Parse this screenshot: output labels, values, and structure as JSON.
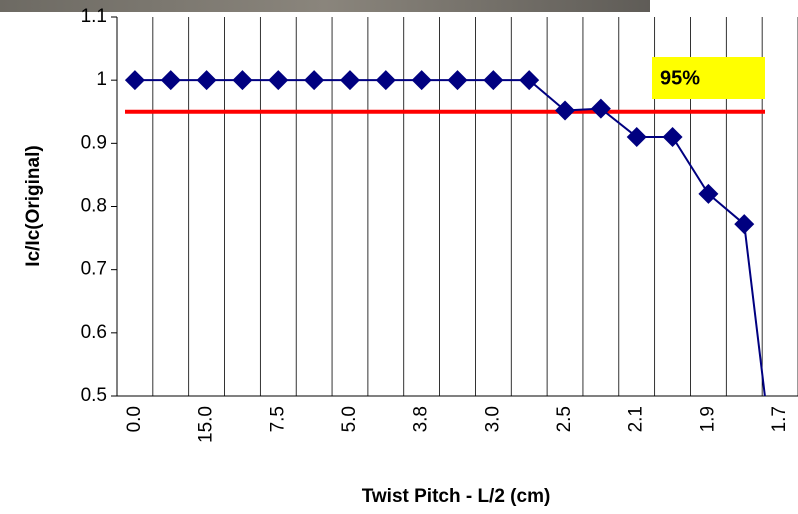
{
  "chart_data": {
    "type": "line",
    "y_label": "Ic/Ic(Original)",
    "x_label": "Twist Pitch - L/2 (cm)",
    "categories": [
      "0.0",
      null,
      "15.0",
      null,
      "7.5",
      null,
      "5.0",
      null,
      "3.8",
      null,
      "3.0",
      null,
      "2.5",
      null,
      "2.1",
      null,
      "1.9",
      null,
      "1.7"
    ],
    "series": [
      {
        "name": "Ic/Ic(Original)",
        "color": "#000080",
        "values": [
          1,
          1,
          1,
          1,
          1,
          1,
          1,
          1,
          1,
          1,
          1,
          1,
          0.952,
          0.955,
          0.91,
          0.91,
          0.82,
          0.772,
          0.3
        ]
      }
    ],
    "ylim": [
      0.5,
      1.1
    ],
    "yticks": [
      0.5,
      0.6,
      0.7,
      0.8,
      0.9,
      1,
      1.1
    ],
    "reference_line": {
      "value": 0.95,
      "label": "95%",
      "color": "#ff0000"
    }
  }
}
